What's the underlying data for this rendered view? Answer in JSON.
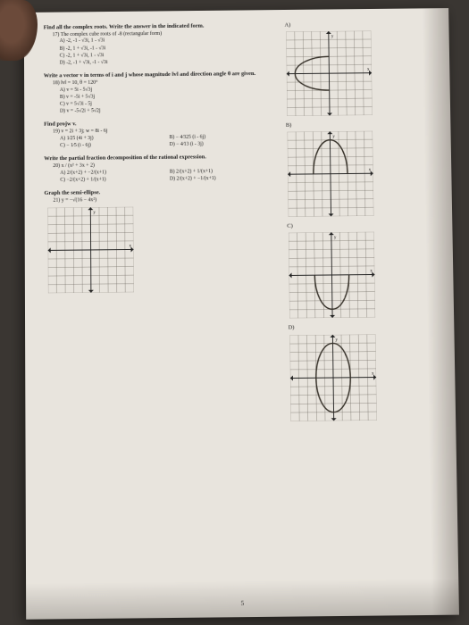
{
  "page_number": "5",
  "q17": {
    "heading": "Find all the complex roots. Write the answer in the indicated form.",
    "sub": "17) The complex cube roots of -8 (rectangular form)",
    "options": [
      "A) -2, -1 - √3i, 1 - √3i",
      "B) -2, 1 + √3i, -1 - √3i",
      "C) -2, 1 + √3i, 1 - √3i",
      "D) -2, -1 + √3i, -1 - √3i"
    ]
  },
  "q18": {
    "heading": "Write a vector v in terms of i and j whose magnitude ‖v‖ and direction angle θ are given.",
    "sub": "18) ‖v‖ = 10,  θ = 120°",
    "options": [
      "A) v = 5i - 5√3j",
      "B) v = -5i + 5√3j",
      "C) v = 5√3i - 5j",
      "D) v = -5√2i + 5√2j"
    ]
  },
  "q19": {
    "heading": "Find projw v.",
    "sub": "19) v = 2i + 3j;  w = 8i - 6j",
    "options": [
      "A) 1⁄25 (4i + 3j)",
      "B) − 4⁄325 (i - 6j)",
      "C) − 1⁄5 (i - 6j)",
      "D) − 4⁄13 (i - 3j)"
    ]
  },
  "q20": {
    "heading": "Write the partial fraction decomposition of the rational expression.",
    "sub": "20)  x / (x² + 3x + 2)",
    "options": [
      "A) 2/(x+2) + −2/(x+1)",
      "B) 2/(x+2) + 1/(x+1)",
      "C) −2/(x+2) + 1/(x+1)",
      "D) 2/(x+2) + −1/(x+1)"
    ]
  },
  "q21": {
    "heading": "Graph the semi-ellipse.",
    "sub": "21) y = −√(16 − 4x²)"
  },
  "graphs": {
    "size": 96,
    "grid_n": 10,
    "grid_color": "#6a655c",
    "axis_color": "#222",
    "ellipse_color": "#353028",
    "axis_stroke": 0.9,
    "grid_stroke": 0.35,
    "A": {
      "label": "A)",
      "type": "semi",
      "a": 4,
      "b": 2,
      "half": "left"
    },
    "B": {
      "label": "B)",
      "type": "semi",
      "a": 2,
      "b": 4,
      "half": "top"
    },
    "C": {
      "label": "C)",
      "type": "semi",
      "a": 2,
      "b": 4,
      "half": "bottom"
    },
    "D": {
      "label": "D)",
      "type": "full",
      "a": 2,
      "b": 4
    },
    "Q": {
      "type": "blank"
    }
  }
}
